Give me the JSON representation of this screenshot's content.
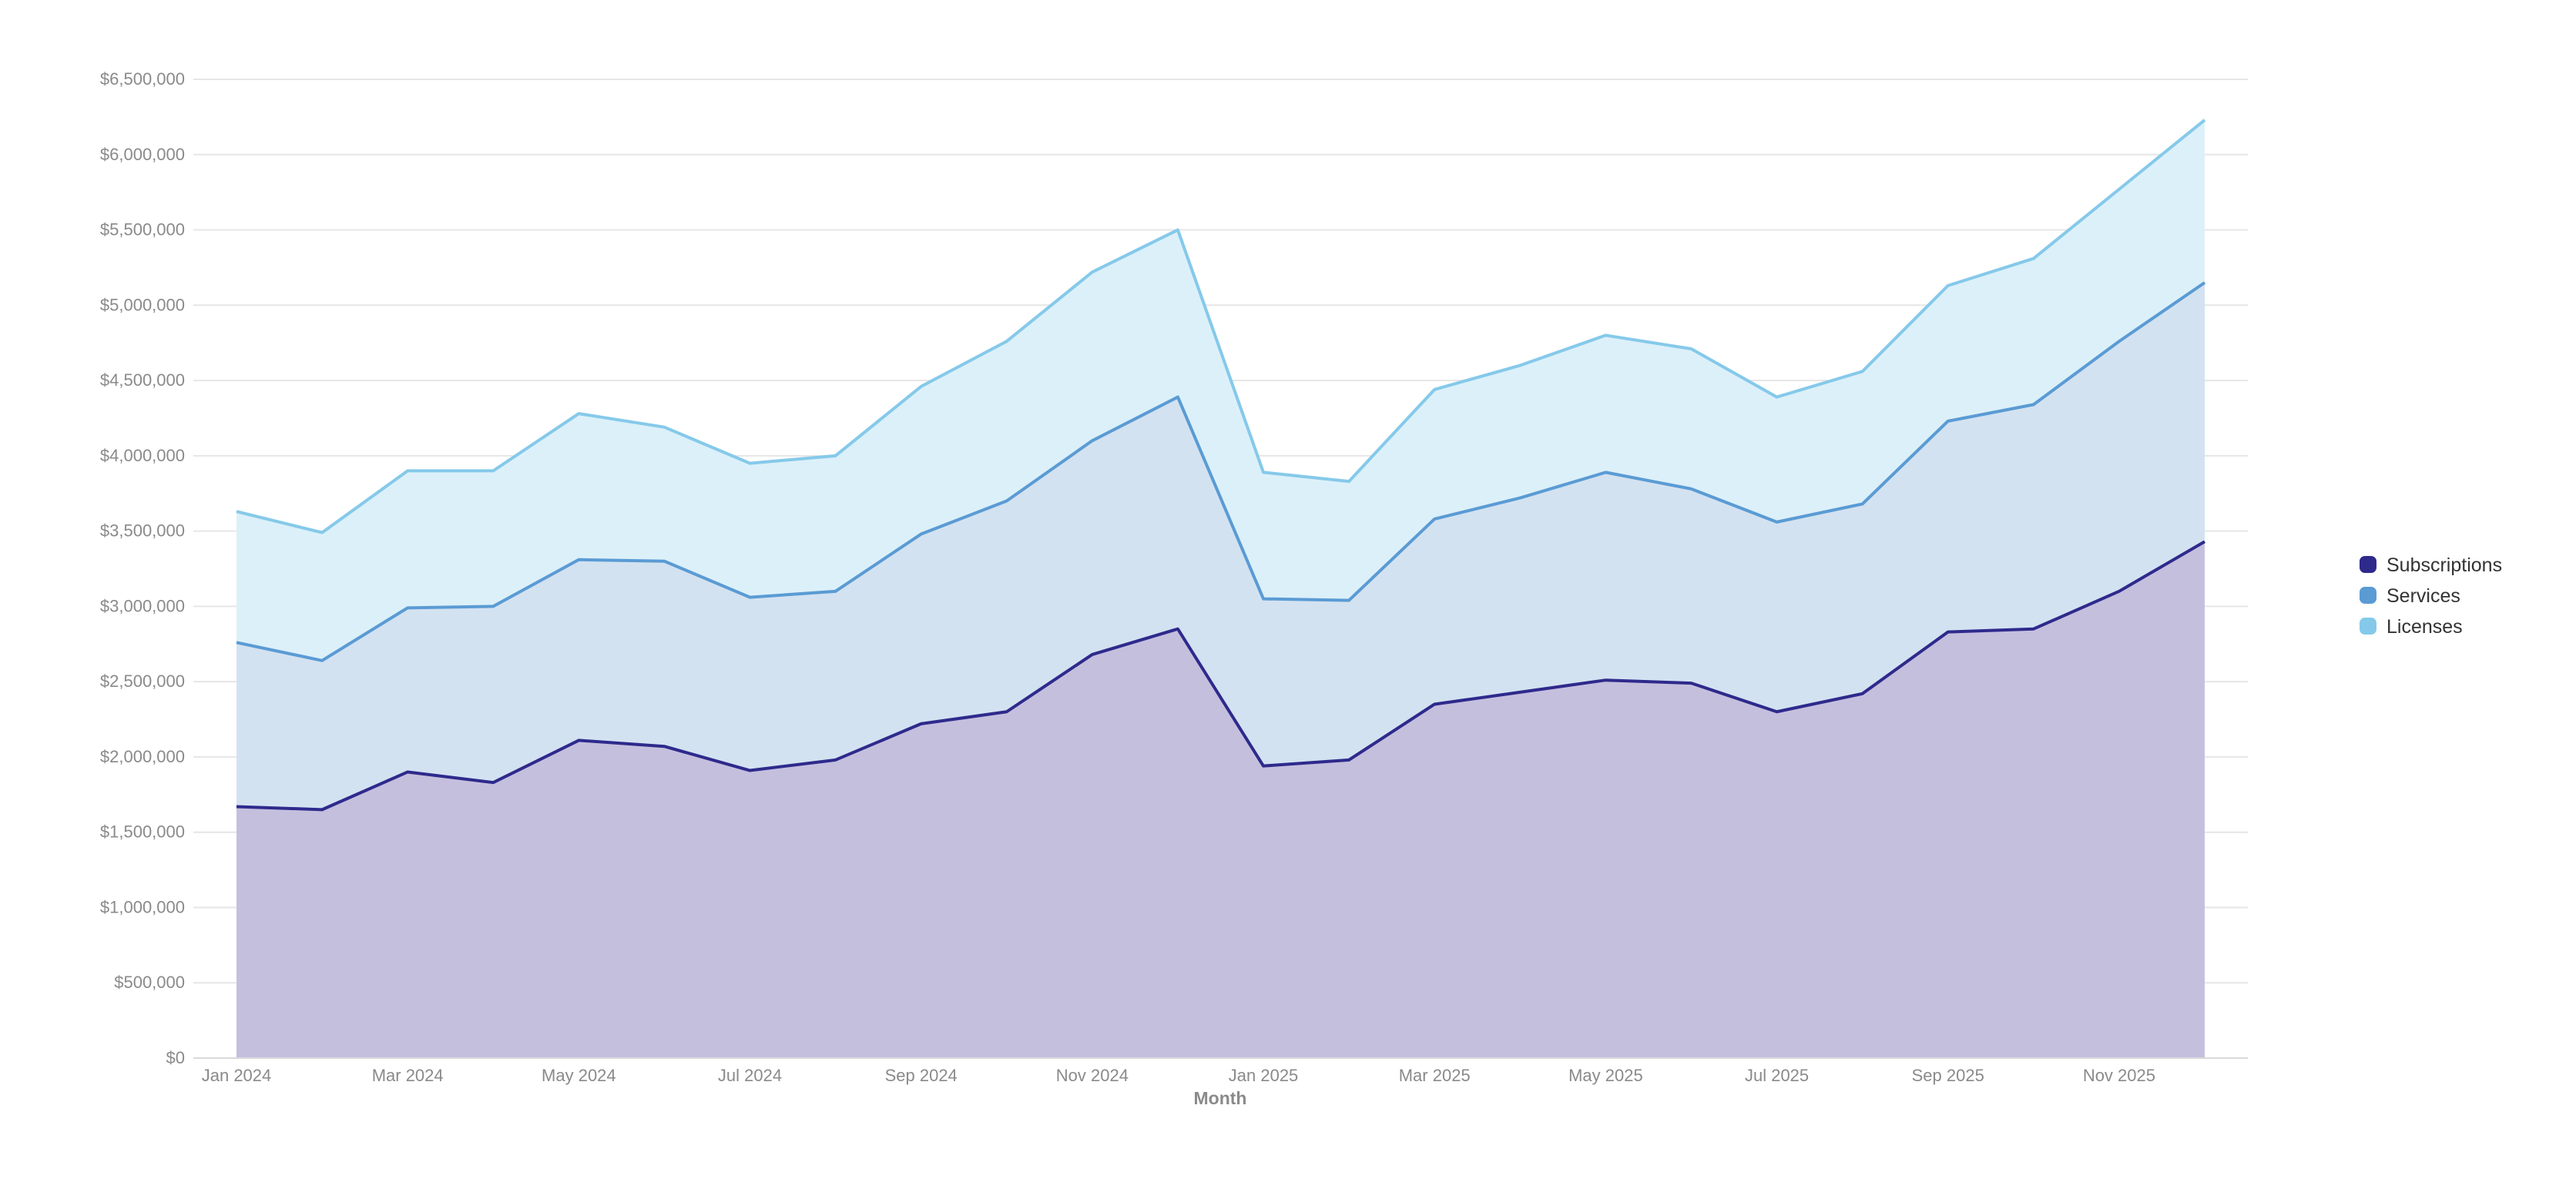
{
  "chart_data": {
    "type": "area",
    "stacked": true,
    "title": "",
    "xlabel": "Month",
    "ylabel": "",
    "ylim": [
      0,
      6500000
    ],
    "y_tick_values": [
      0,
      500000,
      1000000,
      1500000,
      2000000,
      2500000,
      3000000,
      3500000,
      4000000,
      4500000,
      5000000,
      5500000,
      6000000,
      6500000
    ],
    "y_tick_labels": [
      "$0",
      "$500,000",
      "$1,000,000",
      "$1,500,000",
      "$2,000,000",
      "$2,500,000",
      "$3,000,000",
      "$3,500,000",
      "$4,000,000",
      "$4,500,000",
      "$5,000,000",
      "$5,500,000",
      "$6,000,000",
      "$6,500,000"
    ],
    "x": [
      "Jan 2024",
      "Feb 2024",
      "Mar 2024",
      "Apr 2024",
      "May 2024",
      "Jun 2024",
      "Jul 2024",
      "Aug 2024",
      "Sep 2024",
      "Oct 2024",
      "Nov 2024",
      "Dec 2024",
      "Jan 2025",
      "Feb 2025",
      "Mar 2025",
      "Apr 2025",
      "May 2025",
      "Jun 2025",
      "Jul 2025",
      "Aug 2025",
      "Sep 2025",
      "Oct 2025",
      "Nov 2025",
      "Dec 2025"
    ],
    "x_tick_labels": [
      "Jan 2024",
      "",
      "Mar 2024",
      "",
      "May 2024",
      "",
      "Jul 2024",
      "",
      "Sep 2024",
      "",
      "Nov 2024",
      "",
      "Jan 2025",
      "",
      "Mar 2025",
      "",
      "May 2025",
      "",
      "Jul 2025",
      "",
      "Sep 2025",
      "",
      "Nov 2025",
      ""
    ],
    "grid": true,
    "legend_position": "right",
    "series": [
      {
        "name": "Subscriptions",
        "color": "#2e2a8c",
        "fill": "#c5bfde",
        "values": [
          1670000,
          1650000,
          1900000,
          1830000,
          2110000,
          2070000,
          1910000,
          1980000,
          2220000,
          2300000,
          2680000,
          2850000,
          1940000,
          1980000,
          2350000,
          2430000,
          2510000,
          2490000,
          2300000,
          2420000,
          2830000,
          2850000,
          3100000,
          3430000
        ]
      },
      {
        "name": "Services",
        "color": "#5a9bd4",
        "fill": "#d3e2f1",
        "values": [
          1090000,
          990000,
          1090000,
          1170000,
          1200000,
          1230000,
          1150000,
          1120000,
          1260000,
          1400000,
          1420000,
          1540000,
          1110000,
          1060000,
          1230000,
          1290000,
          1380000,
          1290000,
          1260000,
          1260000,
          1400000,
          1490000,
          1660000,
          1720000
        ]
      },
      {
        "name": "Licenses",
        "color": "#85c9ea",
        "fill": "#dcf0f9",
        "values": [
          870000,
          850000,
          910000,
          900000,
          970000,
          890000,
          890000,
          900000,
          980000,
          1060000,
          1120000,
          1110000,
          840000,
          790000,
          860000,
          880000,
          910000,
          930000,
          830000,
          880000,
          900000,
          970000,
          1010000,
          1080000
        ]
      }
    ]
  }
}
